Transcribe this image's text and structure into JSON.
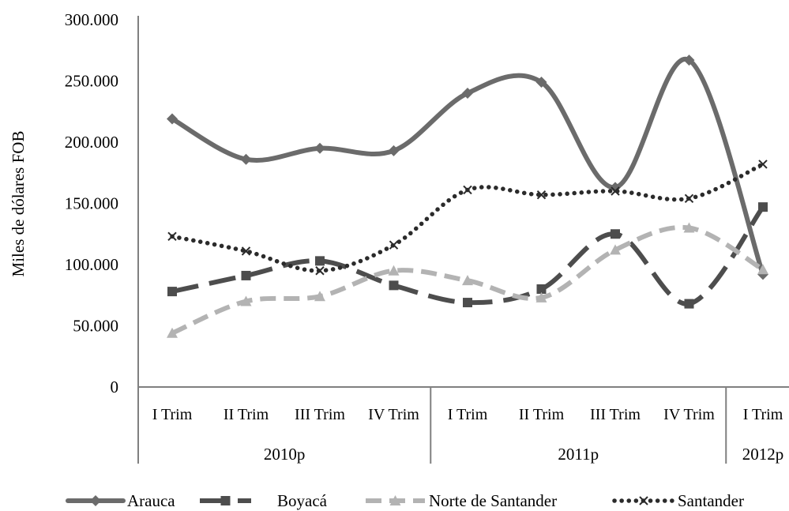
{
  "chart_data": {
    "type": "line",
    "ylabel": "Miles de dólares  FOB",
    "ylim": [
      0,
      300000
    ],
    "yticks": [
      0,
      50000,
      100000,
      150000,
      200000,
      250000,
      300000
    ],
    "ytick_labels": [
      "0",
      "50.000",
      "100.000",
      "150.000",
      "200.000",
      "250.000",
      "300.000"
    ],
    "categories": [
      "I Trim",
      "II Trim",
      "III Trim",
      "IV Trim",
      "I Trim",
      "II Trim",
      "III Trim",
      "IV Trim",
      "I Trim"
    ],
    "groups": [
      {
        "label": "2010p",
        "count": 4
      },
      {
        "label": "2011p",
        "count": 4
      },
      {
        "label": "2012p",
        "count": 1
      }
    ],
    "legend_position": "bottom",
    "series": [
      {
        "name": "Arauca",
        "color": "#6b6b6b",
        "dash": "solid",
        "marker": "diamond",
        "values": [
          219000,
          186000,
          195000,
          193000,
          240000,
          249000,
          163000,
          267000,
          92000
        ]
      },
      {
        "name": "Boyacá",
        "color": "#4d4d4d",
        "dash": "longdash",
        "marker": "square",
        "values": [
          78000,
          91000,
          103000,
          83000,
          69000,
          80000,
          125000,
          68000,
          147000
        ]
      },
      {
        "name": "Norte de Santander",
        "color": "#b3b3b3",
        "dash": "dash",
        "marker": "triangle",
        "values": [
          44000,
          70000,
          74000,
          95000,
          87000,
          73000,
          112000,
          130000,
          96000
        ]
      },
      {
        "name": "Santander",
        "color": "#2b2b2b",
        "dash": "dot",
        "marker": "x",
        "values": [
          123000,
          111000,
          95000,
          116000,
          161000,
          157000,
          160000,
          154000,
          182000
        ]
      }
    ]
  }
}
